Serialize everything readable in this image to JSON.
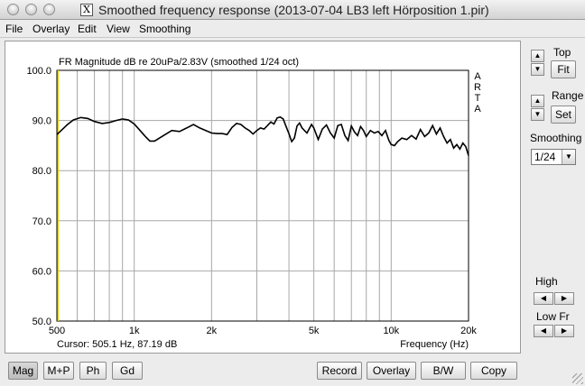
{
  "window": {
    "title": "Smoothed frequency response (2013-07-04 LB3 left Hörposition 1.pir)",
    "icon": "x11-icon"
  },
  "menu": [
    "File",
    "Overlay",
    "Edit",
    "View",
    "Smoothing"
  ],
  "chart_data": {
    "type": "line",
    "title": "FR Magnitude dB re 20uPa/2.83V (smoothed 1/24 oct)",
    "brand": [
      "A",
      "R",
      "T",
      "A"
    ],
    "xlabel": "Frequency (Hz)",
    "ylabel": "",
    "xscale": "log",
    "xlim": [
      500,
      20000
    ],
    "ylim": [
      50,
      100
    ],
    "yticks": [
      50,
      60,
      70,
      80,
      90,
      100
    ],
    "ytick_labels": [
      "50.0",
      "60.0",
      "70.0",
      "80.0",
      "90.0",
      "100.0"
    ],
    "xtick_labels": [
      {
        "value": 500,
        "label": "500"
      },
      {
        "value": 1000,
        "label": "1k"
      },
      {
        "value": 2000,
        "label": "2k"
      },
      {
        "value": 5000,
        "label": "5k"
      },
      {
        "value": 10000,
        "label": "10k"
      },
      {
        "value": 20000,
        "label": "20k"
      }
    ],
    "xgrid": [
      500,
      600,
      700,
      800,
      900,
      1000,
      2000,
      3000,
      4000,
      5000,
      6000,
      7000,
      8000,
      9000,
      10000,
      20000
    ],
    "grid": true,
    "cursor_readout": "Cursor: 505.1 Hz, 87.19 dB",
    "cursor_x": 505.1,
    "series": [
      {
        "color": "#000000",
        "x": [
          500,
          520,
          550,
          580,
          620,
          660,
          700,
          750,
          800,
          850,
          900,
          950,
          1000,
          1050,
          1100,
          1150,
          1200,
          1300,
          1400,
          1500,
          1600,
          1700,
          1800,
          1900,
          2000,
          2100,
          2200,
          2300,
          2400,
          2500,
          2600,
          2700,
          2800,
          2900,
          3000,
          3100,
          3200,
          3300,
          3400,
          3500,
          3600,
          3700,
          3800,
          3900,
          4000,
          4100,
          4200,
          4300,
          4400,
          4500,
          4700,
          4900,
          5000,
          5200,
          5400,
          5600,
          5800,
          6000,
          6200,
          6400,
          6600,
          6800,
          7000,
          7200,
          7400,
          7600,
          7800,
          8000,
          8300,
          8600,
          8900,
          9200,
          9500,
          9800,
          10000,
          10300,
          10600,
          11000,
          11500,
          12000,
          12500,
          13000,
          13500,
          14000,
          14500,
          15000,
          15500,
          16000,
          16500,
          17000,
          17500,
          18000,
          18500,
          19000,
          19500,
          20000
        ],
        "y": [
          87.2,
          88.0,
          89.2,
          90.1,
          90.6,
          90.4,
          89.8,
          89.4,
          89.6,
          90.0,
          90.3,
          90.1,
          89.3,
          88.1,
          86.9,
          85.9,
          85.9,
          87.0,
          88.0,
          87.8,
          88.5,
          89.2,
          88.5,
          88.0,
          87.5,
          87.4,
          87.4,
          87.2,
          88.6,
          89.4,
          89.2,
          88.5,
          88.0,
          87.3,
          88.0,
          88.5,
          88.3,
          89.0,
          89.7,
          89.3,
          90.5,
          90.7,
          90.3,
          88.8,
          87.4,
          85.8,
          86.5,
          88.9,
          89.5,
          88.5,
          87.5,
          89.2,
          88.5,
          86.2,
          88.3,
          89.1,
          87.5,
          86.5,
          89.0,
          89.2,
          87.0,
          86.0,
          88.9,
          87.7,
          87.0,
          88.8,
          88.0,
          86.8,
          88.0,
          87.5,
          87.8,
          87.0,
          88.0,
          86.0,
          85.2,
          85.0,
          85.8,
          86.5,
          86.2,
          87.0,
          86.3,
          88.2,
          86.8,
          87.5,
          89.0,
          87.3,
          88.5,
          86.8,
          85.5,
          86.2,
          84.5,
          85.2,
          84.3,
          85.5,
          84.8,
          83.0
        ]
      }
    ]
  },
  "panel": {
    "top_label": "Top",
    "fit_label": "Fit",
    "range_label": "Range",
    "set_label": "Set",
    "smoothing_label": "Smoothing",
    "smoothing_value": "1/24",
    "high_label": "High",
    "lowfr_label": "Low Fr"
  },
  "buttons": {
    "mag": "Mag",
    "mp": "M+P",
    "ph": "Ph",
    "gd": "Gd",
    "record": "Record",
    "overlay": "Overlay",
    "bw": "B/W",
    "copy": "Copy"
  }
}
